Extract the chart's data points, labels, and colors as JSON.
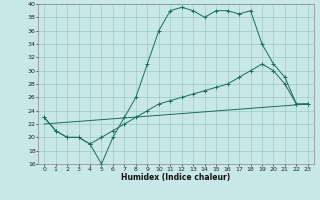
{
  "xlabel": "Humidex (Indice chaleur)",
  "xlim": [
    -0.5,
    23.5
  ],
  "ylim": [
    16,
    40
  ],
  "yticks": [
    16,
    18,
    20,
    22,
    24,
    26,
    28,
    30,
    32,
    34,
    36,
    38,
    40
  ],
  "xticks": [
    0,
    1,
    2,
    3,
    4,
    5,
    6,
    7,
    8,
    9,
    10,
    11,
    12,
    13,
    14,
    15,
    16,
    17,
    18,
    19,
    20,
    21,
    22,
    23
  ],
  "bg_color": "#c8e8e8",
  "grid_color": "#a0c8c8",
  "line_color": "#1a6b5a",
  "line1_x": [
    0,
    1,
    2,
    3,
    4,
    5,
    6,
    7,
    8,
    9,
    10,
    11,
    12,
    13,
    14,
    15,
    16,
    17,
    18,
    19,
    20,
    21,
    22,
    23
  ],
  "line1_y": [
    23,
    21,
    20,
    20,
    19,
    16,
    20,
    23,
    26,
    31,
    36,
    39,
    39.5,
    39,
    38,
    39,
    39,
    38.5,
    39,
    34,
    31,
    29,
    25,
    25
  ],
  "line2_x": [
    0,
    1,
    2,
    3,
    4,
    5,
    6,
    7,
    8,
    9,
    10,
    11,
    12,
    13,
    14,
    15,
    16,
    17,
    18,
    19,
    20,
    21,
    22,
    23
  ],
  "line2_y": [
    23,
    21,
    20,
    20,
    19,
    20,
    21,
    22,
    23,
    24,
    25,
    25.5,
    26,
    26.5,
    27,
    27.5,
    28,
    29,
    30,
    31,
    30,
    28,
    25,
    25
  ],
  "line3_x": [
    0,
    23
  ],
  "line3_y": [
    22,
    25
  ]
}
